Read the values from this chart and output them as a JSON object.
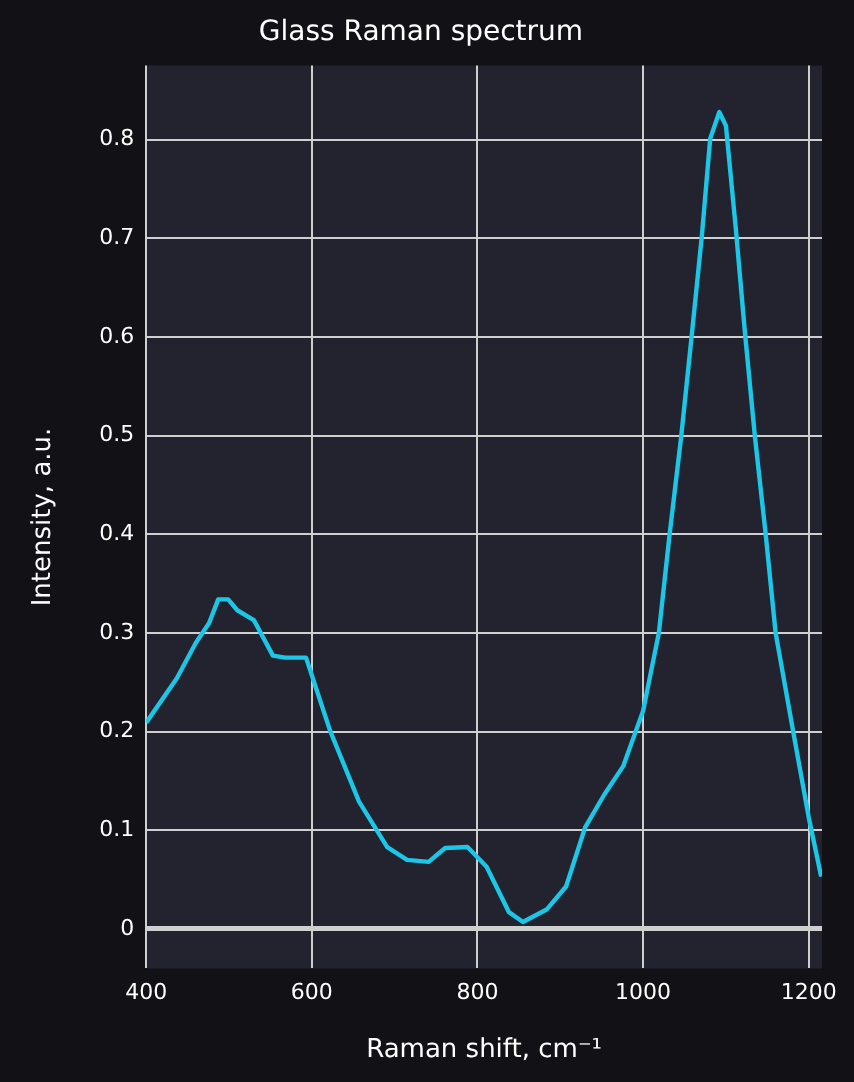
{
  "chart_data": {
    "type": "line",
    "title": "Glass Raman spectrum",
    "xlabel": "Raman shift, cm⁻¹",
    "ylabel": "Intensity, a.u.",
    "x": [
      400,
      437,
      460,
      476,
      487,
      499,
      510,
      530,
      553,
      568,
      593,
      622,
      657,
      691,
      715,
      741,
      761,
      788,
      811,
      838,
      855,
      884,
      907,
      930,
      953,
      976,
      1000,
      1019,
      1032,
      1046,
      1059,
      1071,
      1081,
      1092,
      1100,
      1112,
      1123,
      1135,
      1148,
      1160,
      1181,
      1200,
      1215
    ],
    "series": [
      {
        "color": "#1cc6e6",
        "values": [
          0.209,
          0.254,
          0.29,
          0.31,
          0.334,
          0.334,
          0.323,
          0.313,
          0.277,
          0.275,
          0.275,
          0.201,
          0.129,
          0.083,
          0.07,
          0.068,
          0.082,
          0.083,
          0.063,
          0.017,
          0.007,
          0.02,
          0.043,
          0.103,
          0.136,
          0.165,
          0.221,
          0.3,
          0.4,
          0.499,
          0.604,
          0.703,
          0.801,
          0.828,
          0.814,
          0.709,
          0.604,
          0.499,
          0.4,
          0.3,
          0.201,
          0.113,
          0.053
        ]
      }
    ],
    "xlim": [
      400,
      1216
    ],
    "xticks": [
      400,
      600,
      800,
      1000,
      1200
    ],
    "ylim": [
      -0.04,
      0.875
    ],
    "yticks": [
      0,
      0.1,
      0.2,
      0.3,
      0.4,
      0.5,
      0.6,
      0.7,
      0.8
    ],
    "grid": true,
    "legend": false,
    "marker": "none",
    "line_style": "solid"
  }
}
